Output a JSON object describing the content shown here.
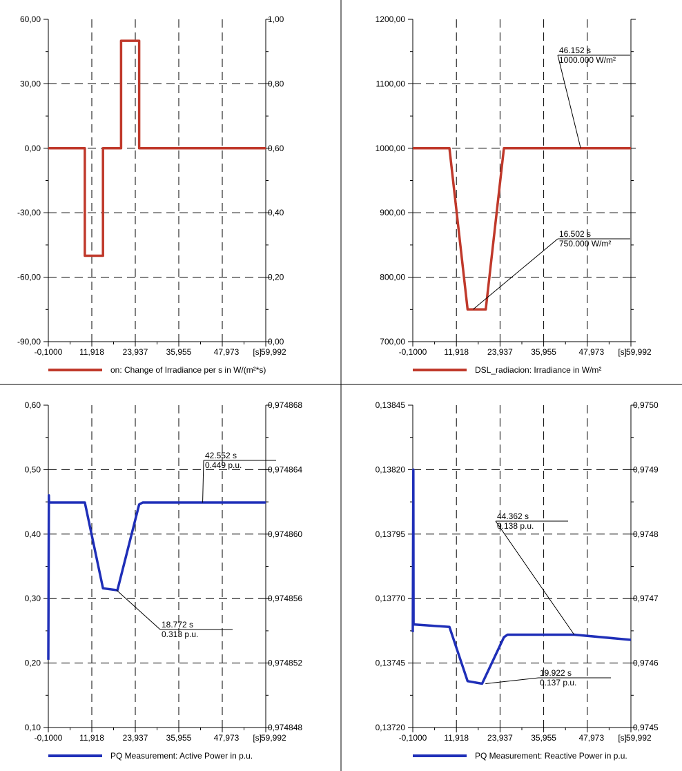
{
  "colors": {
    "red": "#c0392b",
    "blue": "#1f2fb8",
    "grid": "#000000",
    "divider": "#000000"
  },
  "chart_data": [
    {
      "type": "line",
      "title": "",
      "legend": "on: Change of Irradiance per s in W/(m²*s)",
      "legend_position": "bottom-center",
      "color": "red",
      "xlim": [
        -0.1,
        59.992
      ],
      "ylim": [
        -90,
        60
      ],
      "ylim_right": [
        0.0,
        1.0
      ],
      "x_ticks": [
        "-0,1000",
        "11,918",
        "23,937",
        "35,955",
        "47,973",
        "59,992"
      ],
      "x_unit_label": "[s]",
      "y_ticks": [
        "60,00",
        "30,00",
        "0,00",
        "-30,00",
        "-60,00",
        "-90,00"
      ],
      "y_ticks_right": [
        "1,00",
        "0,80",
        "0,60",
        "0,40",
        "0,20",
        "0,00"
      ],
      "grid": true,
      "x": [
        -0.1,
        10,
        10,
        15,
        15,
        20,
        20,
        25,
        25,
        59.992
      ],
      "y": [
        0,
        0,
        -50,
        -50,
        0,
        0,
        50,
        50,
        0,
        0
      ],
      "annotations": []
    },
    {
      "type": "line",
      "title": "",
      "legend": "DSL_radiacion: Irradiance in W/m²",
      "legend_position": "bottom-center",
      "color": "red",
      "xlim": [
        -0.1,
        59.992
      ],
      "ylim": [
        700,
        1200
      ],
      "ylim_right": null,
      "x_ticks": [
        "-0,1000",
        "11,918",
        "23,937",
        "35,955",
        "47,973",
        "59,992"
      ],
      "x_unit_label": "[s]",
      "y_ticks": [
        "1200,00",
        "1100,00",
        "1000,00",
        "900,00",
        "800,00",
        "700,00"
      ],
      "y_ticks_right": [],
      "grid": true,
      "x": [
        -0.1,
        10,
        15,
        20,
        25,
        59.992
      ],
      "y": [
        1000,
        1000,
        750,
        750,
        1000,
        1000
      ],
      "annotations": [
        {
          "x": 46.152,
          "y": 1000,
          "line1": "46.152 s",
          "line2": "1000.000 W/m²"
        },
        {
          "x": 16.502,
          "y": 750,
          "line1": "16.502 s",
          "line2": "750.000 W/m²"
        }
      ]
    },
    {
      "type": "line",
      "title": "",
      "legend": "PQ Measurement: Active Power in p.u.",
      "legend_position": "bottom-center",
      "color": "blue",
      "xlim": [
        -0.1,
        59.992
      ],
      "ylim": [
        0.1,
        0.6
      ],
      "ylim_right": [
        0.974848,
        0.974868
      ],
      "x_ticks": [
        "-0,1000",
        "11,918",
        "23,937",
        "35,955",
        "47,973",
        "59,992"
      ],
      "x_unit_label": "[s]",
      "y_ticks": [
        "0,60",
        "0,50",
        "0,40",
        "0,30",
        "0,20",
        "0,10"
      ],
      "y_ticks_right": [
        "0,974868",
        "0,974864",
        "0,974860",
        "0,974856",
        "0,974852",
        "0,974848"
      ],
      "grid": true,
      "x": [
        -0.1,
        0.05,
        0.1,
        10,
        15,
        19,
        25,
        26,
        59.992
      ],
      "y": [
        0.205,
        0.46,
        0.449,
        0.449,
        0.316,
        0.313,
        0.446,
        0.449,
        0.449
      ],
      "annotations": [
        {
          "x": 42.552,
          "y": 0.449,
          "line1": "42.552 s",
          "line2": "0.449 p.u."
        },
        {
          "x": 18.772,
          "y": 0.313,
          "line1": "18.772 s",
          "line2": "0.313 p.u."
        }
      ]
    },
    {
      "type": "line",
      "title": "",
      "legend": "PQ Measurement: Reactive Power in p.u.",
      "legend_position": "bottom-center",
      "color": "blue",
      "xlim": [
        -0.1,
        59.992
      ],
      "ylim": [
        0.1372,
        0.13845
      ],
      "ylim_right": [
        0.9745,
        0.975
      ],
      "x_ticks": [
        "-0,1000",
        "11,918",
        "23,937",
        "35,955",
        "47,973",
        "59,992"
      ],
      "x_unit_label": "[s]",
      "y_ticks": [
        "0,13845",
        "0,13820",
        "0,13795",
        "0,13770",
        "0,13745",
        "0,13720"
      ],
      "y_ticks_right": [
        "0,9750",
        "0,9749",
        "0,9748",
        "0,9747",
        "0,9746",
        "0,9745"
      ],
      "grid": true,
      "x": [
        -0.1,
        0.05,
        0.1,
        10,
        15,
        19,
        25,
        26,
        44.362,
        59.992
      ],
      "y": [
        0.13757,
        0.1382,
        0.1376,
        0.13759,
        0.13738,
        0.13737,
        0.13755,
        0.13756,
        0.13756,
        0.13754
      ],
      "annotations": [
        {
          "x": 44.362,
          "y": 0.13756,
          "line1": "44.362 s",
          "line2": "0.138 p.u."
        },
        {
          "x": 19.922,
          "y": 0.13737,
          "line1": "19.922 s",
          "line2": "0.137 p.u."
        }
      ]
    }
  ]
}
